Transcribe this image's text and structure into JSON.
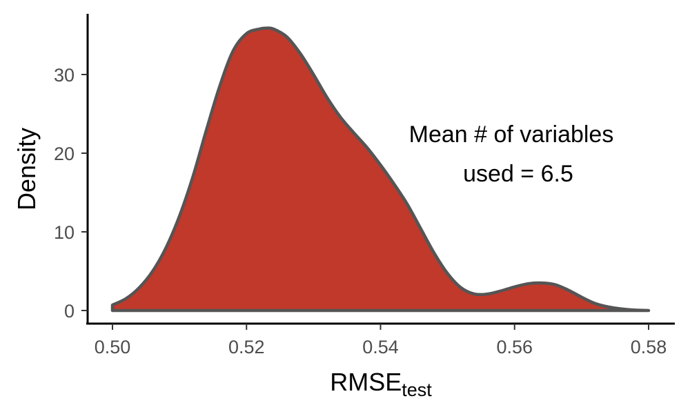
{
  "chart_data": {
    "type": "area",
    "title": "",
    "xlabel": "RMSE",
    "xlabel_subscript": "test",
    "ylabel": "Density",
    "xlim": [
      0.5,
      0.58
    ],
    "ylim": [
      0,
      36
    ],
    "x_ticks": [
      0.5,
      0.52,
      0.54,
      0.56,
      0.58
    ],
    "x_tick_labels": [
      "0.50",
      "0.52",
      "0.54",
      "0.56",
      "0.58"
    ],
    "y_ticks": [
      0,
      10,
      20,
      30
    ],
    "y_tick_labels": [
      "0",
      "10",
      "20",
      "30"
    ],
    "grid": false,
    "legend": "none",
    "fill_color": "#c0392b",
    "line_color": "#555555",
    "annotation": [
      "Mean # of variables",
      "used =  6.5"
    ],
    "series": [
      {
        "x": [
          0.5,
          0.502,
          0.504,
          0.506,
          0.508,
          0.51,
          0.512,
          0.514,
          0.516,
          0.518,
          0.52,
          0.522,
          0.523,
          0.524,
          0.526,
          0.528,
          0.53,
          0.532,
          0.534,
          0.536,
          0.538,
          0.54,
          0.542,
          0.544,
          0.546,
          0.548,
          0.55,
          0.552,
          0.554,
          0.556,
          0.558,
          0.56,
          0.562,
          0.564,
          0.566,
          0.568,
          0.57,
          0.572,
          0.574,
          0.576,
          0.578,
          0.58
        ],
        "y": [
          0.7,
          1.5,
          2.9,
          5.0,
          8.0,
          12.0,
          17.0,
          22.9,
          28.5,
          33.0,
          35.2,
          35.8,
          35.9,
          35.8,
          34.8,
          32.7,
          30.0,
          27.1,
          24.6,
          22.6,
          20.7,
          18.5,
          16.1,
          13.5,
          10.4,
          7.3,
          4.7,
          2.9,
          2.1,
          2.1,
          2.5,
          3.0,
          3.4,
          3.5,
          3.3,
          2.6,
          1.7,
          0.9,
          0.45,
          0.2,
          0.05,
          0.0
        ]
      }
    ]
  }
}
